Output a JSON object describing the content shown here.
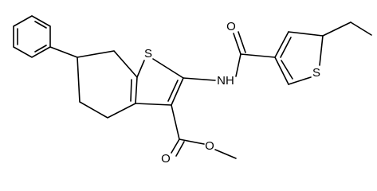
{
  "nodes": [
    {
      "label": "S"
    },
    {
      "label": "NH"
    },
    {
      "label": "O"
    },
    {
      "label": "S"
    },
    {
      "label": "O"
    },
    {
      "label": "O"
    }
  ]
}
